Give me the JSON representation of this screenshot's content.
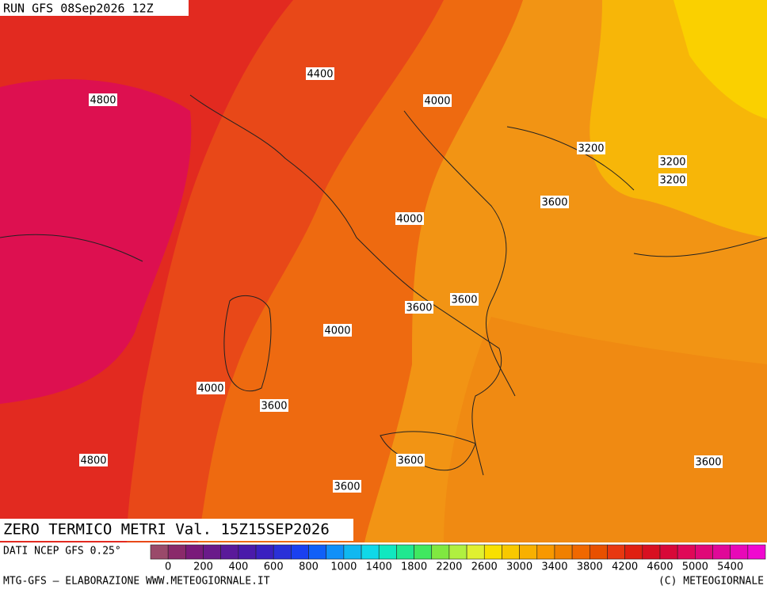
{
  "header": {
    "run": "RUN GFS 08Sep2026 12Z"
  },
  "title": "ZERO TERMICO METRI Val. 15Z15SEP2026",
  "source": "DATI NCEP GFS 0.25°",
  "footer": {
    "left": "MTG-GFS — ELABORAZIONE WWW.METEOGIORNALE.IT",
    "right": "(C) METEOGIORNALE"
  },
  "contour_labels": [
    4400,
    4800,
    4000,
    3200,
    3200,
    3200,
    3600,
    4000,
    3600,
    3600,
    4000,
    4000,
    3600,
    4800,
    3600,
    3600,
    3600
  ],
  "colorbar": {
    "labels": [
      0,
      200,
      400,
      600,
      800,
      1000,
      1400,
      1800,
      2200,
      2600,
      3000,
      3400,
      3800,
      4200,
      4600,
      5000,
      5400
    ],
    "colors": [
      "#9a4a6a",
      "#8a2a6a",
      "#7a1a7a",
      "#6a1a8a",
      "#5a1a9a",
      "#4a1aaa",
      "#3a20c0",
      "#2a30d8",
      "#1a40f0",
      "#1060f8",
      "#1090f8",
      "#10b8f0",
      "#10d8e8",
      "#10e8c0",
      "#20e890",
      "#40e860",
      "#80e840",
      "#b0f040",
      "#e0f030",
      "#f8e000",
      "#f8c800",
      "#f8b000",
      "#f89800",
      "#f08000",
      "#f06800",
      "#e85000",
      "#e83810",
      "#e02010",
      "#d81020",
      "#d80838",
      "#e00858",
      "#e00878",
      "#e00898",
      "#e808b8",
      "#f008d0"
    ]
  }
}
